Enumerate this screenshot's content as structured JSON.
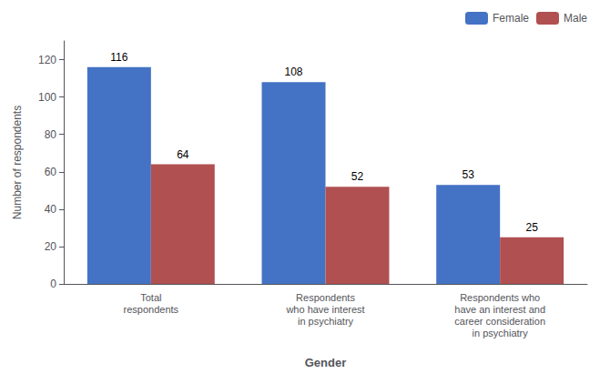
{
  "chart_data": {
    "type": "bar",
    "xlabel": "Gender",
    "ylabel": "Number of respondents",
    "categories": [
      "Total\nrespondents",
      "Respondents\nwho have interest\nin psychiatry",
      "Respondents who\nhave an interest and\ncareer consideration\nin psychiatry"
    ],
    "series": [
      {
        "name": "Female",
        "color": "#4472C4",
        "values": [
          116,
          108,
          53
        ]
      },
      {
        "name": "Male",
        "color": "#B05050",
        "values": [
          64,
          52,
          25
        ]
      }
    ],
    "ylim": [
      0,
      130
    ],
    "yticks": [
      0,
      20,
      40,
      60,
      80,
      100,
      120
    ],
    "data_labels": true,
    "legend": "upper right",
    "grid": false
  }
}
